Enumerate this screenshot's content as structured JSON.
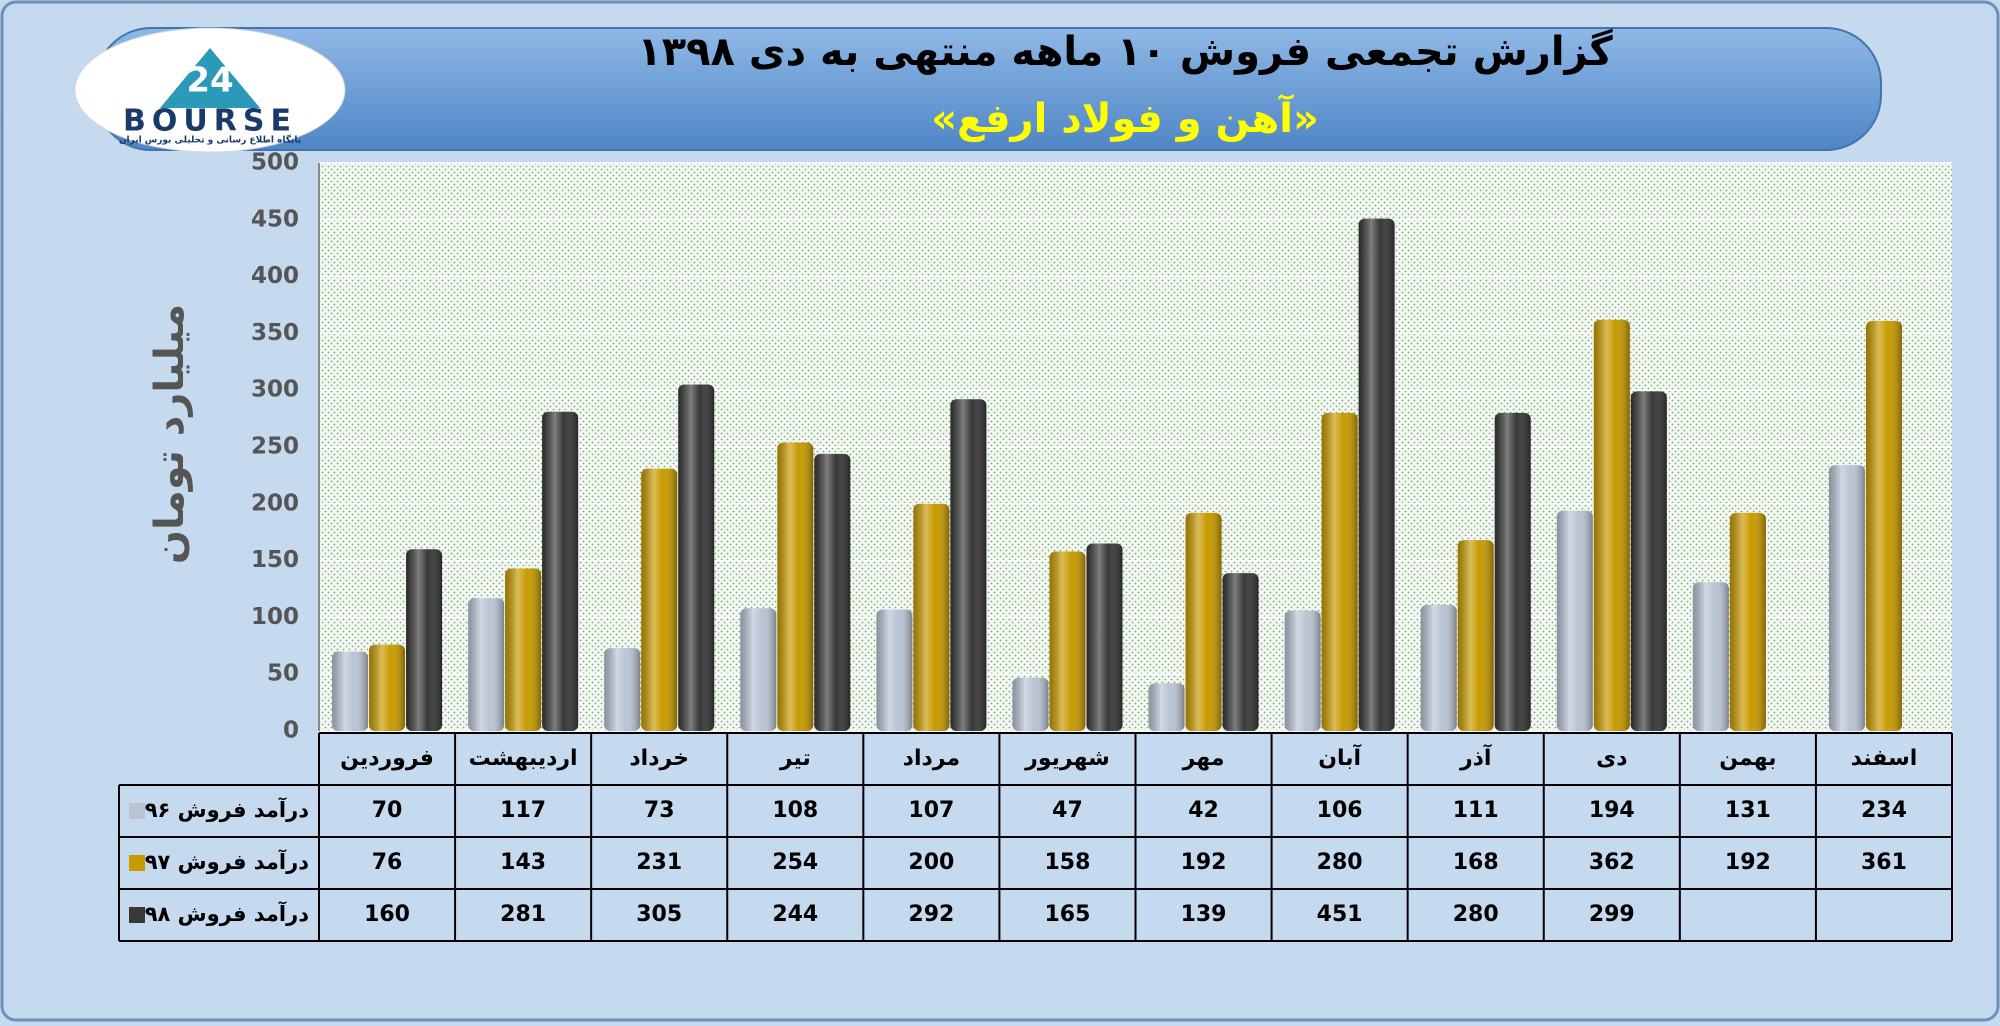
{
  "logo": {
    "mark": "24",
    "name": "BOURSE",
    "tagline": "پایگاه اطلاع رسانی و تحلیلی بورس ایران"
  },
  "chart_data": {
    "type": "bar",
    "title": "گزارش تجمعی فروش ۱۰ ماهه منتهی به دی ۱۳۹۸",
    "subtitle": "«آهن و فولاد ارفع»",
    "y_label": "میلیارد تومان",
    "categories": [
      "فروردین",
      "اردیبهشت",
      "خرداد",
      "تیر",
      "مرداد",
      "شهریور",
      "مهر",
      "آبان",
      "آذر",
      "دی",
      "بهمن",
      "اسفند"
    ],
    "series": [
      {
        "name": "درآمد فروش ۹۶",
        "color": "#b9c3d3",
        "values": [
          70,
          117,
          73,
          108,
          107,
          47,
          42,
          106,
          111,
          194,
          131,
          234
        ]
      },
      {
        "name": "درآمد فروش ۹۷",
        "color": "#c79a00",
        "values": [
          76,
          143,
          231,
          254,
          200,
          158,
          192,
          280,
          168,
          362,
          192,
          361
        ]
      },
      {
        "name": "درآمد فروش ۹۸",
        "color": "#383838",
        "values": [
          160,
          281,
          305,
          244,
          292,
          165,
          139,
          451,
          280,
          299,
          null,
          null
        ]
      }
    ],
    "ylim": [
      0,
      500
    ],
    "yticks": [
      0,
      50,
      100,
      150,
      200,
      250,
      300,
      350,
      400,
      450,
      500
    ],
    "grid": true
  }
}
